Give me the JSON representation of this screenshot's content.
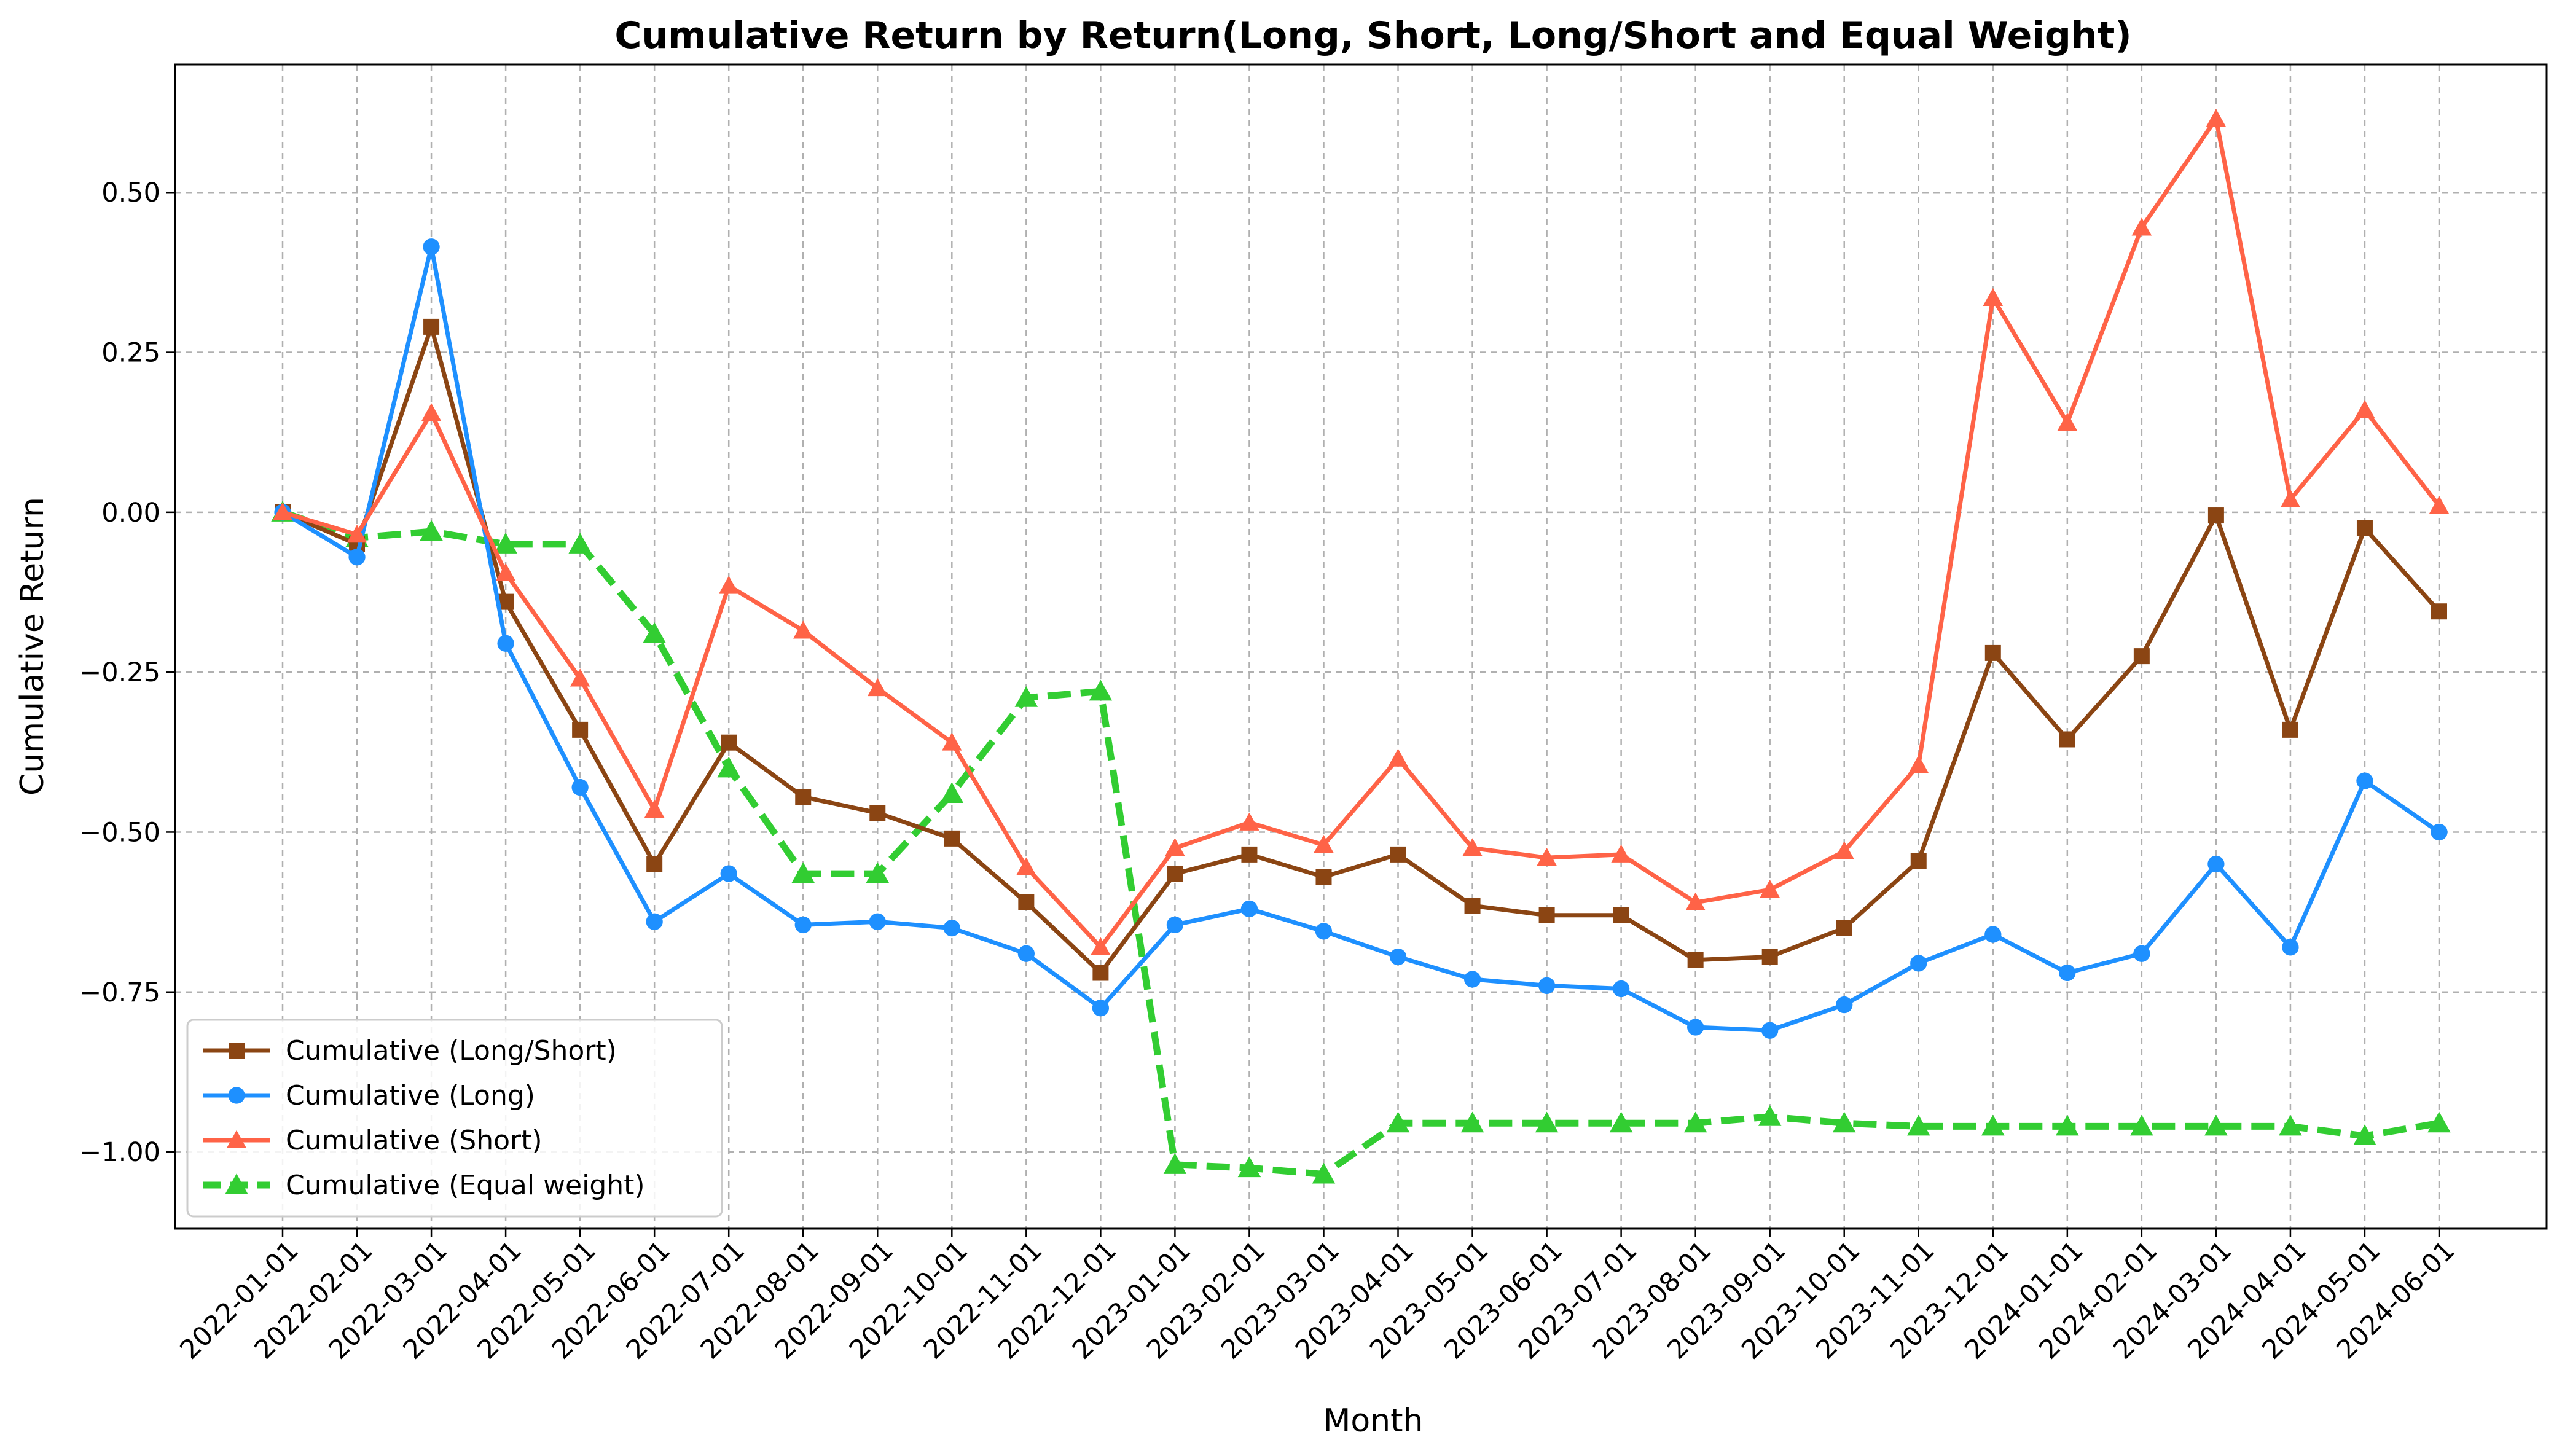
{
  "chart_data": {
    "type": "line",
    "title": "Cumulative Return by Return(Long, Short, Long/Short and Equal Weight)",
    "xlabel": "Month",
    "ylabel": "Cumulative Return",
    "ylim": [
      -1.12,
      0.7
    ],
    "yticks": [
      0.5,
      0.25,
      0.0,
      -0.25,
      -0.5,
      -0.75,
      -1.0
    ],
    "ytick_labels": [
      "0.50",
      "0.25",
      "0.00",
      "−0.25",
      "−0.50",
      "−0.75",
      "−1.00"
    ],
    "grid": true,
    "legend_position": "lower-left",
    "categories": [
      "2022-01-01",
      "2022-02-01",
      "2022-03-01",
      "2022-04-01",
      "2022-05-01",
      "2022-06-01",
      "2022-07-01",
      "2022-08-01",
      "2022-09-01",
      "2022-10-01",
      "2022-11-01",
      "2022-12-01",
      "2023-01-01",
      "2023-02-01",
      "2023-03-01",
      "2023-04-01",
      "2023-05-01",
      "2023-06-01",
      "2023-07-01",
      "2023-08-01",
      "2023-09-01",
      "2023-10-01",
      "2023-11-01",
      "2023-12-01",
      "2024-01-01",
      "2024-02-01",
      "2024-03-01",
      "2024-04-01",
      "2024-05-01",
      "2024-06-01"
    ],
    "series": [
      {
        "name": "Cumulative (Long/Short)",
        "color": "#8b4513",
        "marker": "square",
        "dashed": false,
        "values": [
          0.0,
          -0.05,
          0.29,
          -0.14,
          -0.34,
          -0.55,
          -0.36,
          -0.445,
          -0.47,
          -0.51,
          -0.61,
          -0.72,
          -0.565,
          -0.535,
          -0.57,
          -0.535,
          -0.615,
          -0.63,
          -0.63,
          -0.7,
          -0.695,
          -0.65,
          -0.545,
          -0.22,
          -0.355,
          -0.225,
          -0.005,
          -0.34,
          -0.025,
          -0.155
        ]
      },
      {
        "name": "Cumulative (Long)",
        "color": "#1e90ff",
        "marker": "circle",
        "dashed": false,
        "values": [
          0.0,
          -0.07,
          0.415,
          -0.205,
          -0.43,
          -0.64,
          -0.565,
          -0.645,
          -0.64,
          -0.65,
          -0.69,
          -0.775,
          -0.645,
          -0.62,
          -0.655,
          -0.695,
          -0.73,
          -0.74,
          -0.745,
          -0.805,
          -0.81,
          -0.77,
          -0.705,
          -0.66,
          -0.72,
          -0.69,
          -0.55,
          -0.68,
          -0.42,
          -0.5
        ]
      },
      {
        "name": "Cumulative (Short)",
        "color": "#ff6347",
        "marker": "triangle",
        "dashed": false,
        "values": [
          0.0,
          -0.035,
          0.155,
          -0.095,
          -0.26,
          -0.465,
          -0.115,
          -0.185,
          -0.275,
          -0.36,
          -0.555,
          -0.68,
          -0.525,
          -0.485,
          -0.52,
          -0.385,
          -0.525,
          -0.54,
          -0.535,
          -0.61,
          -0.59,
          -0.53,
          -0.395,
          0.335,
          0.14,
          0.445,
          0.615,
          0.02,
          0.16,
          0.01
        ]
      },
      {
        "name": "Cumulative (Equal weight)",
        "color": "#32cd32",
        "marker": "triangle",
        "dashed": true,
        "values": [
          0.0,
          -0.04,
          -0.03,
          -0.05,
          -0.05,
          -0.19,
          -0.4,
          -0.565,
          -0.565,
          -0.44,
          -0.29,
          -0.28,
          -1.02,
          -1.025,
          -1.035,
          -0.955,
          -0.955,
          -0.955,
          -0.955,
          -0.955,
          -0.945,
          -0.955,
          -0.96,
          -0.96,
          -0.96,
          -0.96,
          -0.96,
          -0.96,
          -0.975,
          -0.955
        ]
      }
    ]
  }
}
